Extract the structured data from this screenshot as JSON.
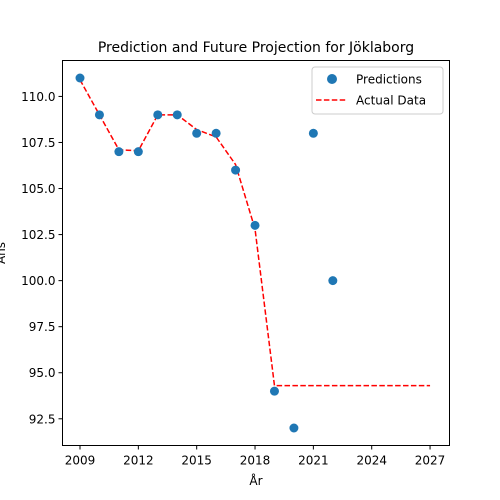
{
  "chart_data": {
    "type": "scatter",
    "title": "Prediction and Future Projection for Jöklaborg",
    "xlabel": "År",
    "ylabel": "Ans",
    "xlim": [
      2008.1,
      2028.0
    ],
    "ylim": [
      91.05,
      111.95
    ],
    "xticks": [
      2009,
      2012,
      2015,
      2018,
      2021,
      2024,
      2027
    ],
    "xtick_labels": [
      "2009",
      "2012",
      "2015",
      "2018",
      "2021",
      "2024",
      "2027"
    ],
    "yticks": [
      92.5,
      95.0,
      97.5,
      100.0,
      102.5,
      105.0,
      107.5,
      110.0
    ],
    "ytick_labels": [
      "92.5",
      "95.0",
      "97.5",
      "100.0",
      "102.5",
      "105.0",
      "107.5",
      "110.0"
    ],
    "grid": false,
    "legend_position": "top-right",
    "series": [
      {
        "name": "Predictions",
        "kind": "scatter",
        "color": "#1f77b4",
        "x": [
          2009,
          2010,
          2011,
          2012,
          2013,
          2014,
          2015,
          2016,
          2017,
          2018,
          2019,
          2020,
          2021,
          2022
        ],
        "y": [
          111,
          109,
          107,
          107,
          109,
          109,
          108,
          108,
          106,
          103,
          94,
          92,
          108,
          100
        ]
      },
      {
        "name": "Actual Data",
        "kind": "line",
        "style": "dashed",
        "color": "#ff0000",
        "x": [
          2009,
          2010,
          2011,
          2012,
          2013,
          2014,
          2015,
          2016,
          2017,
          2018,
          2019,
          2020,
          2021,
          2022,
          2023,
          2024,
          2025,
          2026,
          2027
        ],
        "y": [
          110.9,
          109.0,
          107.1,
          107.05,
          109.0,
          109.0,
          108.2,
          107.8,
          106.3,
          102.8,
          94.3,
          94.3,
          94.3,
          94.3,
          94.3,
          94.3,
          94.3,
          94.3,
          94.3
        ]
      }
    ]
  }
}
